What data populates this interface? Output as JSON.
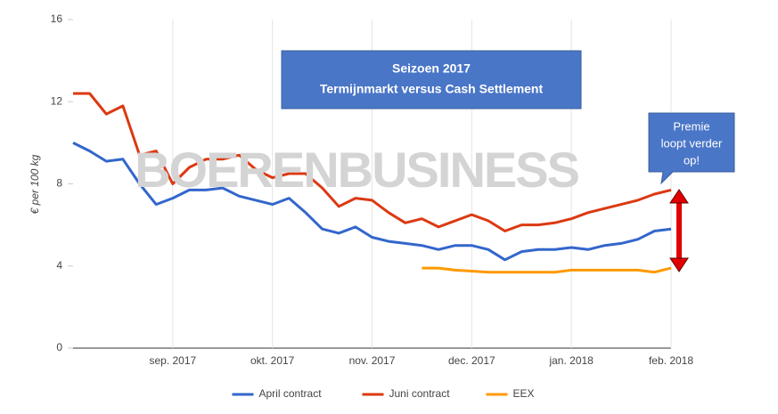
{
  "chart_data": {
    "type": "line",
    "title": [
      "Seizoen 2017",
      "Termijnmarkt versus Cash Settlement"
    ],
    "y_label": "€ per 100 kg",
    "watermark": "BOERENBUSINESS",
    "annotation": [
      "Premie",
      "loopt verder",
      "op!"
    ],
    "categories": [
      null,
      null,
      null,
      null,
      null,
      null,
      "sep. 2017",
      null,
      null,
      null,
      null,
      null,
      "okt. 2017",
      null,
      null,
      null,
      null,
      null,
      "nov. 2017",
      null,
      null,
      null,
      null,
      null,
      "dec. 2017",
      null,
      null,
      null,
      null,
      null,
      "jan. 2018",
      null,
      null,
      null,
      null,
      null,
      "feb. 2018"
    ],
    "series": [
      {
        "name": "April contract",
        "color": "#3366cc",
        "values": [
          10.0,
          9.6,
          9.1,
          9.2,
          8.0,
          7.0,
          7.3,
          7.7,
          7.7,
          7.8,
          7.4,
          7.2,
          7.0,
          7.3,
          6.6,
          5.8,
          5.6,
          5.9,
          5.4,
          5.2,
          5.1,
          5.0,
          4.8,
          5.0,
          5.0,
          4.8,
          4.3,
          4.7,
          4.8,
          4.8,
          4.9,
          4.8,
          5.0,
          5.1,
          5.3,
          5.7,
          5.8
        ]
      },
      {
        "name": "Juni contract",
        "color": "#dc3912",
        "values": [
          12.4,
          12.4,
          11.4,
          11.8,
          9.4,
          9.6,
          8.0,
          8.8,
          9.2,
          9.2,
          9.4,
          8.7,
          8.3,
          8.5,
          8.5,
          7.8,
          6.9,
          7.3,
          7.2,
          6.6,
          6.1,
          6.3,
          5.9,
          6.2,
          6.5,
          6.2,
          5.7,
          6.0,
          6.0,
          6.1,
          6.3,
          6.6,
          6.8,
          7.0,
          7.2,
          7.5,
          7.7
        ]
      },
      {
        "name": "EEX",
        "color": "#ff9900",
        "values": [
          null,
          null,
          null,
          null,
          null,
          null,
          null,
          null,
          null,
          null,
          null,
          null,
          null,
          null,
          null,
          null,
          null,
          null,
          null,
          null,
          null,
          3.9,
          3.9,
          3.8,
          3.75,
          3.7,
          3.7,
          3.7,
          3.7,
          3.7,
          3.8,
          3.8,
          3.8,
          3.8,
          3.8,
          3.7,
          3.9
        ]
      }
    ],
    "ylim": [
      0,
      16
    ],
    "yticks": [
      0,
      4,
      8,
      12,
      16
    ],
    "grid": true,
    "legend": "bottom"
  }
}
